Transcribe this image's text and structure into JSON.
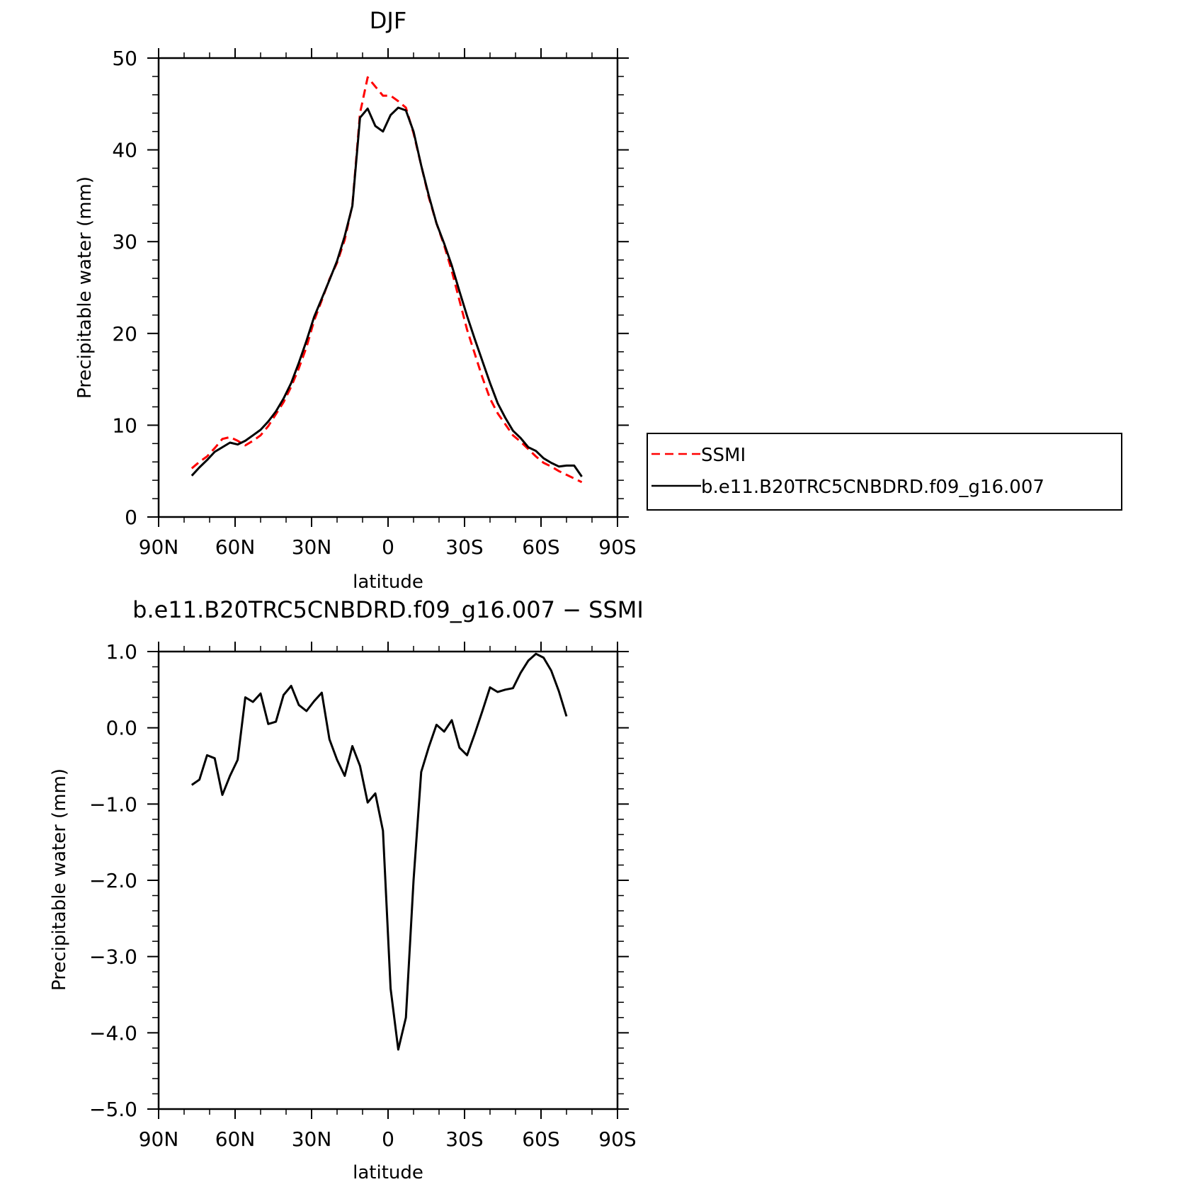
{
  "chart_data": [
    {
      "type": "line",
      "title": "DJF",
      "xlabel": "latitude",
      "ylabel": "Precipitable water (mm)",
      "xlim": [
        90,
        -90
      ],
      "ylim": [
        0,
        50
      ],
      "x_tick_values": [
        90,
        60,
        30,
        0,
        -30,
        -60,
        -90
      ],
      "x_tick_labels": [
        "90N",
        "60N",
        "30N",
        "0",
        "30S",
        "60S",
        "90S"
      ],
      "y_tick_values": [
        0,
        10,
        20,
        30,
        40,
        50
      ],
      "y_tick_labels": [
        "0",
        "10",
        "20",
        "30",
        "40",
        "50"
      ],
      "legend": {
        "placement": "right-middle"
      },
      "series": [
        {
          "name": "SSMI",
          "color": "#ff0000",
          "dash": "dashed",
          "x": [
            77,
            74,
            71,
            68,
            65,
            62,
            59,
            56,
            53,
            50,
            47,
            44,
            41,
            38,
            35,
            32,
            29,
            26,
            23,
            20,
            17,
            14,
            11,
            8,
            5,
            2,
            -1,
            -4,
            -7,
            -10,
            -13,
            -16,
            -19,
            -22,
            -25,
            -28,
            -31,
            -34,
            -37,
            -40,
            -43,
            -46,
            -49,
            -52,
            -55,
            -58,
            -61,
            -64,
            -67,
            -70,
            -73,
            -76
          ],
          "y": [
            5.3,
            6.0,
            6.6,
            7.5,
            8.5,
            8.7,
            8.3,
            7.8,
            8.3,
            8.9,
            9.9,
            11.2,
            12.5,
            14.2,
            16.2,
            18.5,
            21.4,
            23.6,
            25.9,
            27.7,
            30.2,
            34.0,
            44.0,
            47.9,
            46.9,
            45.9,
            45.9,
            45.3,
            44.6,
            41.8,
            38.3,
            34.8,
            32.0,
            29.6,
            26.8,
            23.6,
            20.4,
            17.8,
            15.2,
            12.9,
            11.3,
            10.1,
            8.9,
            8.2,
            7.4,
            6.6,
            5.9,
            5.5,
            5.0,
            4.6,
            4.2,
            3.8
          ],
          "note_x": "x values in degrees latitude (positive = N, negative = S)"
        },
        {
          "name": "b.e11.B20TRC5CNBDRD.f09_g16.007",
          "color": "#000000",
          "dash": "solid",
          "x": [
            77,
            74,
            71,
            68,
            65,
            62,
            59,
            56,
            53,
            50,
            47,
            44,
            41,
            38,
            35,
            32,
            29,
            26,
            23,
            20,
            17,
            14,
            11,
            8,
            5,
            2,
            -1,
            -4,
            -7,
            -10,
            -13,
            -16,
            -19,
            -22,
            -25,
            -28,
            -31,
            -34,
            -37,
            -40,
            -43,
            -46,
            -49,
            -52,
            -55,
            -58,
            -61,
            -64,
            -67,
            -70,
            -73,
            -76
          ],
          "y": [
            4.5,
            5.4,
            6.2,
            7.1,
            7.6,
            8.1,
            7.9,
            8.3,
            8.9,
            9.5,
            10.4,
            11.5,
            12.9,
            14.6,
            16.8,
            19.2,
            21.8,
            23.8,
            25.8,
            27.9,
            30.6,
            33.9,
            43.5,
            44.5,
            42.6,
            42.0,
            43.8,
            44.6,
            44.3,
            42.0,
            38.3,
            35.0,
            32.0,
            29.8,
            27.4,
            24.6,
            21.9,
            19.4,
            17.0,
            14.6,
            12.4,
            10.8,
            9.4,
            8.6,
            7.6,
            7.2,
            6.4,
            5.9,
            5.5,
            5.6,
            5.6,
            4.4
          ]
        }
      ]
    },
    {
      "type": "line",
      "title": "b.e11.B20TRC5CNBDRD.f09_g16.007 − SSMI",
      "xlabel": "latitude",
      "ylabel": "Precipitable water (mm)",
      "xlim": [
        90,
        -90
      ],
      "ylim": [
        -5,
        1
      ],
      "x_tick_values": [
        90,
        60,
        30,
        0,
        -30,
        -60,
        -90
      ],
      "x_tick_labels": [
        "90N",
        "60N",
        "30N",
        "0",
        "30S",
        "60S",
        "90S"
      ],
      "y_tick_values": [
        1,
        0,
        -1,
        -2,
        -3,
        -4,
        -5
      ],
      "y_tick_labels": [
        "1.0",
        "0.0",
        "−1.0",
        "−2.0",
        "−3.0",
        "−4.0",
        "−5.0"
      ],
      "series": [
        {
          "color": "#000000",
          "dash": "solid",
          "x": [
            77,
            74,
            71,
            68,
            65,
            62,
            59,
            56,
            53,
            50,
            47,
            44,
            41,
            38,
            35,
            32,
            29,
            26,
            23,
            20,
            17,
            14,
            11,
            8,
            5,
            2,
            -1,
            -4,
            -7,
            -10,
            -13,
            -16,
            -19,
            -22,
            -25,
            -28,
            -31,
            -34,
            -37,
            -40,
            -43,
            -46,
            -49,
            -52,
            -55,
            -58,
            -61,
            -64,
            -67,
            -70
          ],
          "y": [
            -0.75,
            -0.68,
            -0.36,
            -0.4,
            -0.88,
            -0.63,
            -0.42,
            0.4,
            0.34,
            0.45,
            0.05,
            0.08,
            0.43,
            0.55,
            0.3,
            0.22,
            0.35,
            0.46,
            -0.15,
            -0.42,
            -0.63,
            -0.24,
            -0.5,
            -0.98,
            -0.86,
            -1.35,
            -3.42,
            -4.22,
            -3.8,
            -2.0,
            -0.58,
            -0.25,
            0.04,
            -0.05,
            0.1,
            -0.26,
            -0.36,
            -0.08,
            0.22,
            0.53,
            0.47,
            0.5,
            0.52,
            0.72,
            0.88,
            0.97,
            0.92,
            0.75,
            0.48,
            0.15
          ]
        }
      ]
    }
  ],
  "legend_items": [
    {
      "label": "SSMI",
      "color": "#ff0000",
      "dash": "dashed"
    },
    {
      "label": "b.e11.B20TRC5CNBDRD.f09_g16.007",
      "color": "#000000",
      "dash": "solid"
    }
  ]
}
